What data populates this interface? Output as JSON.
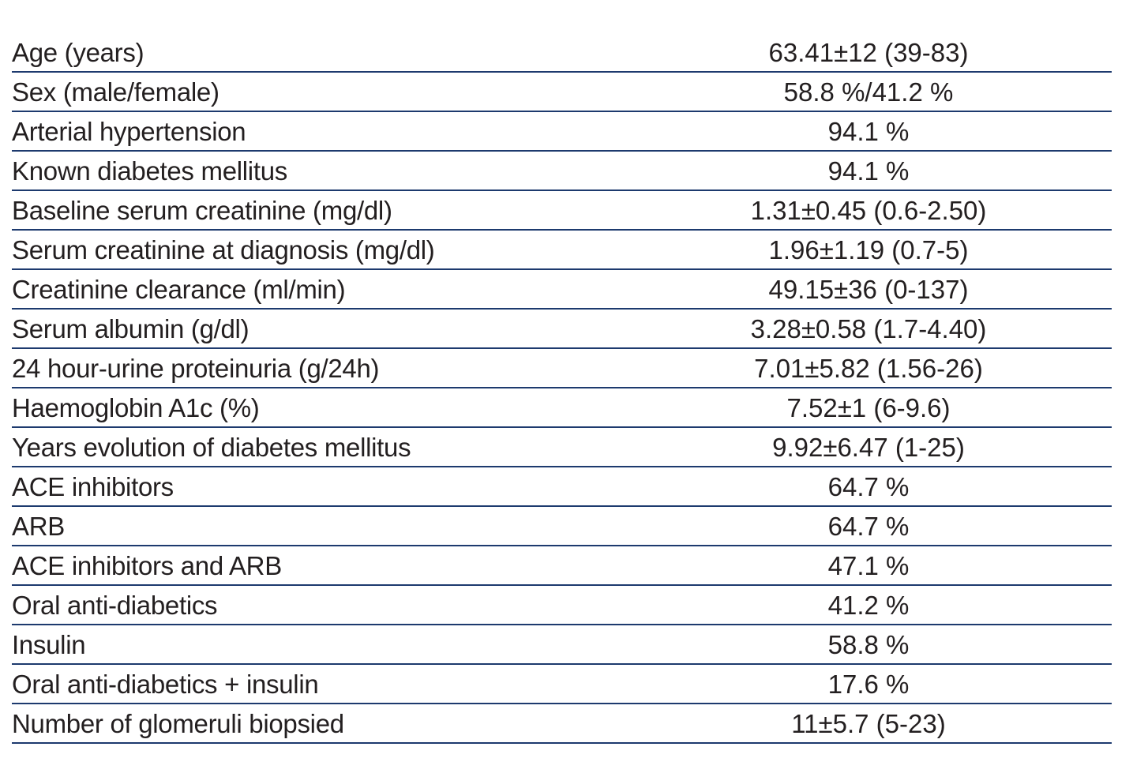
{
  "table": {
    "rows": [
      [
        "Age (years)",
        "63.41±12 (39-83)"
      ],
      [
        "Sex (male/female)",
        "58.8 %/41.2 %"
      ],
      [
        "Arterial hypertension",
        "94.1 %"
      ],
      [
        "Known diabetes mellitus",
        "94.1 %"
      ],
      [
        "Baseline serum creatinine (mg/dl)",
        "1.31±0.45 (0.6-2.50)"
      ],
      [
        "Serum creatinine at diagnosis (mg/dl)",
        "1.96±1.19 (0.7-5)"
      ],
      [
        "Creatinine clearance (ml/min)",
        "49.15±36 (0-137)"
      ],
      [
        "Serum albumin (g/dl)",
        "3.28±0.58 (1.7-4.40)"
      ],
      [
        "24 hour-urine proteinuria (g/24h)",
        "7.01±5.82 (1.56-26)"
      ],
      [
        "Haemoglobin A1c (%)",
        "7.52±1 (6-9.6)"
      ],
      [
        "Years evolution of diabetes mellitus",
        "9.92±6.47 (1-25)"
      ],
      [
        "ACE inhibitors",
        "64.7 %"
      ],
      [
        "ARB",
        "64.7 %"
      ],
      [
        "ACE inhibitors and ARB",
        "47.1 %"
      ],
      [
        "Oral anti-diabetics",
        "41.2 %"
      ],
      [
        "Insulin",
        "58.8 %"
      ],
      [
        "Oral anti-diabetics + insulin",
        "17.6 %"
      ],
      [
        "Number of glomeruli biopsied",
        "11±5.7 (5-23)"
      ]
    ]
  }
}
